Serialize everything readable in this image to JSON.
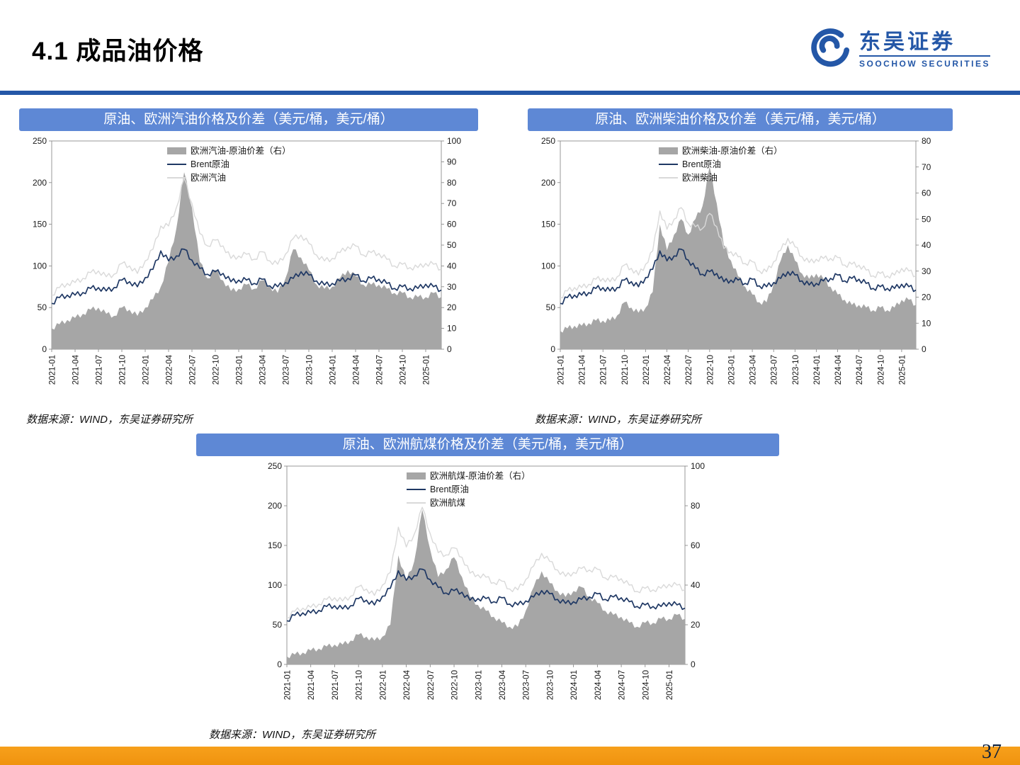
{
  "header": {
    "title": "4.1 成品油价格",
    "logo": {
      "cn": "东吴证券",
      "en": "SOOCHOW SECURITIES"
    }
  },
  "footer": {
    "page_number": "37"
  },
  "colors": {
    "accent_blue": "#2457A7",
    "panel_header_bg": "#5E88D5",
    "footer_orange": "#F7A01B",
    "area_gray": "#A6A6A6",
    "brent_navy": "#1F3864",
    "product_light": "#D9D9D9"
  },
  "months": [
    "2021-01",
    "2021-02",
    "2021-03",
    "2021-04",
    "2021-05",
    "2021-06",
    "2021-07",
    "2021-08",
    "2021-09",
    "2021-10",
    "2021-11",
    "2021-12",
    "2022-01",
    "2022-02",
    "2022-03",
    "2022-04",
    "2022-05",
    "2022-06",
    "2022-07",
    "2022-08",
    "2022-09",
    "2022-10",
    "2022-11",
    "2022-12",
    "2023-01",
    "2023-02",
    "2023-03",
    "2023-04",
    "2023-05",
    "2023-06",
    "2023-07",
    "2023-08",
    "2023-09",
    "2023-10",
    "2023-11",
    "2023-12",
    "2024-01",
    "2024-02",
    "2024-03",
    "2024-04",
    "2024-05",
    "2024-06",
    "2024-07",
    "2024-08",
    "2024-09",
    "2024-10",
    "2024-11",
    "2024-12",
    "2025-01",
    "2025-02",
    "2025-03"
  ],
  "chart_data": [
    {
      "type": "area",
      "title": "原油、欧洲汽油价格及价差（美元/桶，美元/桶）",
      "source": "数据来源：WIND，东吴证券研究所",
      "left_axis": {
        "min": 0,
        "max": 250,
        "step": 50
      },
      "right_axis": {
        "min": 0,
        "max": 100,
        "step": 10
      },
      "x_tick_every": 3,
      "series": [
        {
          "name": "欧洲汽油-原油价差（右）",
          "type": "area",
          "axis": "right",
          "color": "#A6A6A6",
          "values": [
            10,
            12,
            14,
            15,
            17,
            19,
            20,
            17,
            16,
            20,
            19,
            16,
            20,
            24,
            30,
            42,
            58,
            85,
            68,
            42,
            34,
            38,
            33,
            28,
            29,
            31,
            29,
            33,
            30,
            27,
            34,
            48,
            44,
            38,
            31,
            29,
            30,
            34,
            38,
            35,
            31,
            31,
            31,
            29,
            27,
            27,
            25,
            25,
            25,
            27,
            25
          ]
        },
        {
          "name": "Brent原油",
          "type": "line",
          "axis": "left",
          "color": "#1F3864",
          "values": [
            55,
            62,
            65,
            65,
            68,
            73,
            74,
            70,
            74,
            83,
            81,
            75,
            86,
            96,
            118,
            106,
            112,
            120,
            107,
            97,
            90,
            93,
            91,
            81,
            83,
            83,
            79,
            84,
            76,
            75,
            80,
            85,
            93,
            89,
            82,
            77,
            79,
            82,
            85,
            89,
            82,
            85,
            84,
            79,
            73,
            75,
            73,
            73,
            78,
            75,
            71
          ]
        },
        {
          "name": "欧洲汽油",
          "type": "line",
          "axis": "left",
          "color": "#D9D9D9",
          "values": [
            65,
            74,
            79,
            80,
            85,
            92,
            94,
            87,
            90,
            103,
            100,
            91,
            106,
            120,
            148,
            148,
            170,
            205,
            175,
            139,
            124,
            131,
            124,
            109,
            112,
            114,
            108,
            117,
            106,
            102,
            114,
            133,
            137,
            127,
            113,
            106,
            109,
            116,
            123,
            124,
            113,
            116,
            115,
            108,
            100,
            102,
            98,
            98,
            103,
            102,
            96
          ]
        }
      ]
    },
    {
      "type": "area",
      "title": "原油、欧洲柴油价格及价差（美元/桶，美元/桶）",
      "source": "数据来源：WIND，东吴证券研究所",
      "left_axis": {
        "min": 0,
        "max": 250,
        "step": 50
      },
      "right_axis": {
        "min": 0,
        "max": 80,
        "step": 10
      },
      "x_tick_every": 3,
      "series": [
        {
          "name": "欧洲柴油-原油价差（右）",
          "type": "area",
          "axis": "right",
          "color": "#A6A6A6",
          "values": [
            7,
            8,
            9,
            9,
            10,
            11,
            11,
            11,
            13,
            18,
            16,
            14,
            16,
            22,
            48,
            38,
            44,
            50,
            44,
            50,
            55,
            70,
            56,
            40,
            34,
            28,
            24,
            21,
            18,
            18,
            25,
            34,
            40,
            34,
            29,
            27,
            29,
            27,
            24,
            21,
            19,
            17,
            17,
            16,
            15,
            16,
            15,
            16,
            19,
            19,
            17
          ]
        },
        {
          "name": "Brent原油",
          "type": "line",
          "axis": "left",
          "color": "#1F3864",
          "values": [
            55,
            62,
            65,
            65,
            68,
            73,
            74,
            70,
            74,
            83,
            81,
            75,
            86,
            96,
            118,
            106,
            112,
            120,
            107,
            97,
            90,
            93,
            91,
            81,
            83,
            83,
            79,
            84,
            76,
            75,
            80,
            85,
            93,
            89,
            82,
            77,
            79,
            82,
            85,
            89,
            82,
            85,
            84,
            79,
            73,
            75,
            73,
            73,
            78,
            75,
            71
          ]
        },
        {
          "name": "欧洲柴油",
          "type": "line",
          "axis": "left",
          "color": "#D9D9D9",
          "values": [
            62,
            70,
            74,
            74,
            78,
            84,
            85,
            81,
            87,
            101,
            97,
            89,
            102,
            118,
            166,
            144,
            156,
            170,
            151,
            147,
            145,
            163,
            147,
            121,
            117,
            111,
            103,
            105,
            94,
            93,
            105,
            119,
            133,
            123,
            111,
            104,
            108,
            109,
            109,
            110,
            101,
            102,
            101,
            95,
            88,
            91,
            88,
            89,
            97,
            94,
            88
          ]
        }
      ]
    },
    {
      "type": "area",
      "title": "原油、欧洲航煤价格及价差（美元/桶，美元/桶）",
      "source": "数据来源：WIND，东吴证券研究所",
      "left_axis": {
        "min": 0,
        "max": 250,
        "step": 50
      },
      "right_axis": {
        "min": 0,
        "max": 100,
        "step": 20
      },
      "x_tick_every": 3,
      "series": [
        {
          "name": "欧洲航煤-原油价差（右）",
          "type": "area",
          "axis": "right",
          "color": "#A6A6A6",
          "values": [
            4,
            5,
            6,
            7,
            8,
            9,
            10,
            10,
            12,
            15,
            14,
            12,
            14,
            20,
            55,
            42,
            52,
            78,
            58,
            44,
            48,
            54,
            44,
            34,
            30,
            27,
            24,
            21,
            19,
            19,
            27,
            39,
            47,
            41,
            37,
            34,
            37,
            39,
            34,
            31,
            27,
            25,
            24,
            21,
            19,
            21,
            21,
            23,
            23,
            25,
            23
          ]
        },
        {
          "name": "Brent原油",
          "type": "line",
          "axis": "left",
          "color": "#1F3864",
          "values": [
            55,
            62,
            65,
            65,
            68,
            73,
            74,
            70,
            74,
            83,
            81,
            75,
            86,
            96,
            118,
            106,
            112,
            120,
            107,
            97,
            90,
            93,
            91,
            81,
            83,
            83,
            79,
            84,
            76,
            75,
            80,
            85,
            93,
            89,
            82,
            77,
            79,
            82,
            85,
            89,
            82,
            85,
            84,
            79,
            73,
            75,
            73,
            73,
            78,
            75,
            71
          ]
        },
        {
          "name": "欧洲航煤",
          "type": "line",
          "axis": "left",
          "color": "#D9D9D9",
          "values": [
            59,
            67,
            71,
            72,
            76,
            82,
            84,
            80,
            86,
            98,
            95,
            87,
            100,
            116,
            173,
            148,
            164,
            198,
            165,
            141,
            138,
            147,
            135,
            115,
            113,
            110,
            103,
            105,
            95,
            94,
            107,
            124,
            140,
            130,
            119,
            111,
            116,
            121,
            119,
            120,
            109,
            110,
            108,
            100,
            92,
            96,
            94,
            96,
            101,
            100,
            94
          ]
        }
      ]
    }
  ]
}
